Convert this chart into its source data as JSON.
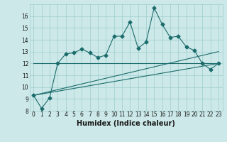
{
  "xlabel": "Humidex (Indice chaleur)",
  "x_values": [
    0,
    1,
    2,
    3,
    4,
    5,
    6,
    7,
    8,
    9,
    10,
    11,
    12,
    13,
    14,
    15,
    16,
    17,
    18,
    19,
    20,
    21,
    22,
    23
  ],
  "y_main": [
    9.3,
    8.2,
    9.1,
    12.0,
    12.8,
    12.9,
    13.2,
    12.9,
    12.5,
    12.7,
    14.3,
    14.3,
    15.5,
    13.3,
    13.8,
    16.7,
    15.3,
    14.2,
    14.3,
    13.4,
    13.1,
    12.0,
    11.5,
    12.0
  ],
  "ref_line1_x": [
    0,
    22,
    23
  ],
  "ref_line1_y": [
    12.0,
    12.0,
    12.0
  ],
  "ref_line2_x": [
    0,
    23
  ],
  "ref_line2_y": [
    9.3,
    13.0
  ],
  "ref_line3_x": [
    0,
    23
  ],
  "ref_line3_y": [
    9.3,
    12.0
  ],
  "ylim": [
    8,
    17
  ],
  "yticks": [
    8,
    9,
    10,
    11,
    12,
    13,
    14,
    15,
    16
  ],
  "xlim": [
    -0.5,
    23.5
  ],
  "bg_color": "#cce8e8",
  "grid_color": "#9ecece",
  "line_color": "#1a6b6b",
  "marker": "D",
  "marker_size": 2.5,
  "linewidth": 0.8,
  "xlabel_fontsize": 7,
  "tick_fontsize": 5.5
}
